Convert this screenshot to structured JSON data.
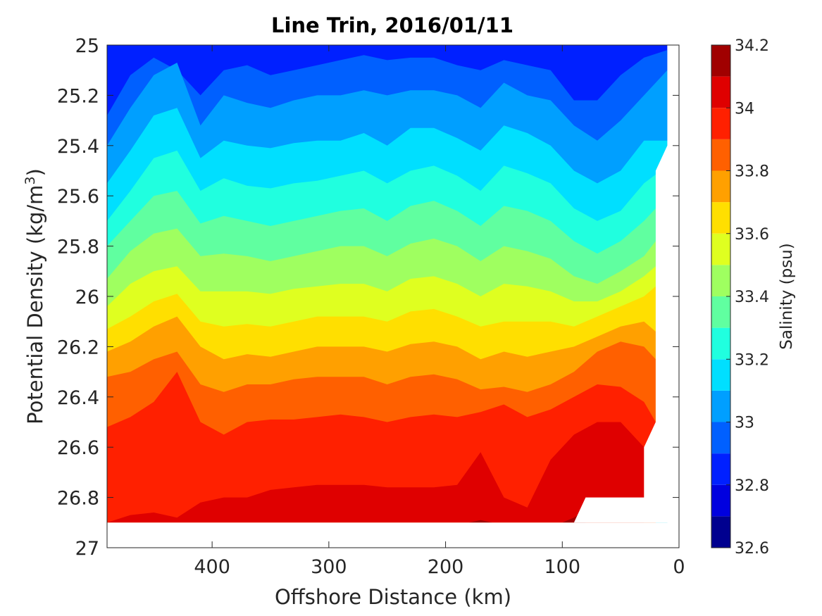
{
  "chart_data": {
    "type": "heatmap",
    "subtype": "filled-contour",
    "title": "Line Trin, 2016/01/11",
    "xlabel": "Offshore Distance (km)",
    "ylabel": "Potential Density (kg/m3)",
    "ylabel_main": "Potential Density (kg/m",
    "ylabel_sup": "3",
    "ylabel_close": ")",
    "colorbar_label": "Salinity (psu)",
    "xlim": [
      490,
      0
    ],
    "x_reversed": true,
    "ylim": [
      25,
      27
    ],
    "y_reversed": true,
    "xticks": [
      400,
      300,
      200,
      100,
      0
    ],
    "xtick_labels": [
      "400",
      "300",
      "200",
      "100",
      "0"
    ],
    "yticks": [
      25,
      25.2,
      25.4,
      25.6,
      25.8,
      26,
      26.2,
      26.4,
      26.6,
      26.8,
      27
    ],
    "ytick_labels": [
      "25",
      "25.2",
      "25.4",
      "25.6",
      "25.8",
      "26",
      "26.2",
      "26.4",
      "26.6",
      "26.8",
      "27"
    ],
    "grid": false,
    "colorbar_range": [
      32.6,
      34.2
    ],
    "colorbar_ticks": [
      32.6,
      32.8,
      33,
      33.2,
      33.4,
      33.6,
      33.8,
      34,
      34.2
    ],
    "colorbar_tick_labels": [
      "32.6",
      "32.8",
      "33",
      "33.2",
      "33.4",
      "33.6",
      "33.8",
      "34",
      "34.2"
    ],
    "contour_levels": [
      32.6,
      32.7,
      32.8,
      32.9,
      33.0,
      33.1,
      33.2,
      33.3,
      33.4,
      33.5,
      33.6,
      33.7,
      33.8,
      33.9,
      34.0,
      34.1,
      34.2
    ],
    "colormap": [
      "#00008f",
      "#0000df",
      "#0020ff",
      "#0060ff",
      "#009fff",
      "#00dfff",
      "#20ffdf",
      "#60ffa0",
      "#9fff60",
      "#dfff20",
      "#ffdf00",
      "#ffa000",
      "#ff6000",
      "#ff2000",
      "#df0000",
      "#a00000"
    ],
    "data_extent": {
      "x_range": [
        490,
        10
      ],
      "density_range": [
        25.0,
        26.9
      ]
    },
    "salinity_isolines": [
      {
        "level": 32.9,
        "x": [
          490,
          470,
          450,
          430,
          410,
          390,
          370,
          350,
          330,
          310,
          290,
          270,
          250,
          230,
          210,
          190,
          170,
          150,
          130,
          110,
          90,
          70,
          50,
          30,
          10
        ],
        "density": [
          25.28,
          25.12,
          25.05,
          25.1,
          25.2,
          25.1,
          25.08,
          25.12,
          25.1,
          25.08,
          25.06,
          25.04,
          25.06,
          25.05,
          25.05,
          25.08,
          25.1,
          25.06,
          25.08,
          25.1,
          25.22,
          25.22,
          25.12,
          25.05,
          25.02
        ]
      },
      {
        "level": 33.0,
        "x": [
          490,
          470,
          450,
          430,
          410,
          390,
          370,
          350,
          330,
          310,
          290,
          270,
          250,
          230,
          210,
          190,
          170,
          150,
          130,
          110,
          90,
          70,
          50,
          30,
          10
        ],
        "density": [
          25.4,
          25.25,
          25.12,
          25.07,
          25.32,
          25.2,
          25.23,
          25.25,
          25.22,
          25.2,
          25.2,
          25.18,
          25.2,
          25.18,
          25.18,
          25.2,
          25.25,
          25.15,
          25.2,
          25.22,
          25.32,
          25.38,
          25.3,
          25.2,
          25.1
        ]
      },
      {
        "level": 33.1,
        "x": [
          490,
          470,
          450,
          430,
          410,
          390,
          370,
          350,
          330,
          310,
          290,
          270,
          250,
          230,
          210,
          190,
          170,
          150,
          130,
          110,
          90,
          70,
          50,
          30,
          10
        ],
        "density": [
          25.55,
          25.42,
          25.28,
          25.25,
          25.45,
          25.38,
          25.4,
          25.41,
          25.39,
          25.38,
          25.38,
          25.35,
          25.4,
          25.33,
          25.33,
          25.37,
          25.42,
          25.32,
          25.35,
          25.4,
          25.5,
          25.55,
          25.5,
          25.38,
          25.38
        ]
      },
      {
        "level": 33.2,
        "x": [
          490,
          470,
          450,
          430,
          410,
          390,
          370,
          350,
          330,
          310,
          290,
          270,
          250,
          230,
          210,
          190,
          170,
          150,
          130,
          110,
          90,
          70,
          50,
          30,
          10
        ],
        "density": [
          25.7,
          25.58,
          25.45,
          25.42,
          25.58,
          25.53,
          25.56,
          25.57,
          25.55,
          25.54,
          25.52,
          25.5,
          25.55,
          25.5,
          25.48,
          25.52,
          25.58,
          25.48,
          25.51,
          25.55,
          25.65,
          25.7,
          25.66,
          25.55,
          25.48
        ]
      },
      {
        "level": 33.3,
        "x": [
          490,
          470,
          450,
          430,
          410,
          390,
          370,
          350,
          330,
          310,
          290,
          270,
          250,
          230,
          210,
          190,
          170,
          150,
          130,
          110,
          90,
          70,
          50,
          30,
          20
        ],
        "density": [
          25.8,
          25.7,
          25.6,
          25.58,
          25.71,
          25.68,
          25.7,
          25.72,
          25.7,
          25.68,
          25.66,
          25.65,
          25.7,
          25.64,
          25.62,
          25.66,
          25.72,
          25.64,
          25.66,
          25.7,
          25.78,
          25.83,
          25.78,
          25.7,
          25.65
        ]
      },
      {
        "level": 33.4,
        "x": [
          490,
          470,
          450,
          430,
          410,
          390,
          370,
          350,
          330,
          310,
          290,
          270,
          250,
          230,
          210,
          190,
          170,
          150,
          130,
          110,
          90,
          70,
          50,
          30,
          20
        ],
        "density": [
          25.93,
          25.82,
          25.75,
          25.73,
          25.84,
          25.83,
          25.84,
          25.86,
          25.84,
          25.82,
          25.8,
          25.8,
          25.84,
          25.79,
          25.77,
          25.8,
          25.86,
          25.8,
          25.82,
          25.85,
          25.92,
          25.95,
          25.9,
          25.84,
          25.78
        ]
      },
      {
        "level": 33.5,
        "x": [
          490,
          470,
          450,
          430,
          410,
          390,
          370,
          350,
          330,
          310,
          290,
          270,
          250,
          230,
          210,
          190,
          170,
          150,
          130,
          110,
          90,
          70,
          50,
          30,
          20
        ],
        "density": [
          26.04,
          25.95,
          25.9,
          25.88,
          25.98,
          25.98,
          25.98,
          25.99,
          25.97,
          25.96,
          25.95,
          25.95,
          25.98,
          25.93,
          25.92,
          25.95,
          26.0,
          25.95,
          25.96,
          25.98,
          26.02,
          26.02,
          25.98,
          25.92,
          25.88
        ]
      },
      {
        "level": 33.6,
        "x": [
          490,
          470,
          450,
          430,
          410,
          390,
          370,
          350,
          330,
          310,
          290,
          270,
          250,
          230,
          210,
          190,
          170,
          150,
          130,
          110,
          90,
          70,
          50,
          30,
          20
        ],
        "density": [
          26.13,
          26.08,
          26.02,
          25.99,
          26.1,
          26.12,
          26.11,
          26.12,
          26.1,
          26.08,
          26.08,
          26.08,
          26.1,
          26.06,
          26.05,
          26.08,
          26.12,
          26.1,
          26.1,
          26.1,
          26.12,
          26.08,
          26.04,
          26.0,
          25.96
        ]
      },
      {
        "level": 33.7,
        "x": [
          490,
          470,
          450,
          430,
          410,
          390,
          370,
          350,
          330,
          310,
          290,
          270,
          250,
          230,
          210,
          190,
          170,
          150,
          130,
          110,
          90,
          70,
          50,
          30,
          20
        ],
        "density": [
          26.22,
          26.18,
          26.12,
          26.08,
          26.2,
          26.25,
          26.23,
          26.24,
          26.22,
          26.2,
          26.2,
          26.2,
          26.22,
          26.19,
          26.18,
          26.2,
          26.25,
          26.22,
          26.24,
          26.22,
          26.2,
          26.16,
          26.12,
          26.1,
          26.14
        ]
      },
      {
        "level": 33.8,
        "x": [
          490,
          470,
          450,
          430,
          410,
          390,
          370,
          350,
          330,
          310,
          290,
          270,
          250,
          230,
          210,
          190,
          170,
          150,
          130,
          110,
          90,
          70,
          50,
          30,
          20
        ],
        "density": [
          26.32,
          26.3,
          26.25,
          26.22,
          26.35,
          26.38,
          26.35,
          26.35,
          26.33,
          26.32,
          26.32,
          26.32,
          26.35,
          26.32,
          26.31,
          26.33,
          26.37,
          26.36,
          26.38,
          26.35,
          26.3,
          26.22,
          26.18,
          26.2,
          26.25
        ]
      },
      {
        "level": 33.9,
        "x": [
          490,
          470,
          450,
          430,
          410,
          390,
          370,
          350,
          330,
          310,
          290,
          270,
          250,
          230,
          210,
          190,
          170,
          150,
          130,
          110,
          90,
          70,
          50,
          30,
          20
        ],
        "density": [
          26.52,
          26.48,
          26.42,
          26.3,
          26.5,
          26.55,
          26.5,
          26.49,
          26.49,
          26.48,
          26.47,
          26.48,
          26.5,
          26.48,
          26.47,
          26.48,
          26.46,
          26.43,
          26.48,
          26.45,
          26.4,
          26.35,
          26.36,
          26.42,
          26.5
        ]
      },
      {
        "level": 34.0,
        "x": [
          490,
          470,
          450,
          430,
          410,
          390,
          370,
          350,
          330,
          310,
          290,
          270,
          250,
          230,
          210,
          190,
          170,
          150,
          130,
          110,
          90,
          70,
          50,
          30
        ],
        "density": [
          26.9,
          26.87,
          26.86,
          26.88,
          26.82,
          26.8,
          26.8,
          26.77,
          26.76,
          26.75,
          26.75,
          26.75,
          26.76,
          26.76,
          26.76,
          26.75,
          26.62,
          26.8,
          26.84,
          26.65,
          26.55,
          26.5,
          26.5,
          26.6
        ]
      },
      {
        "level": 34.1,
        "x": [
          180,
          170,
          160,
          100,
          90,
          80
        ],
        "density": [
          26.9,
          26.89,
          26.9,
          26.9,
          26.88,
          26.85
        ]
      }
    ]
  }
}
